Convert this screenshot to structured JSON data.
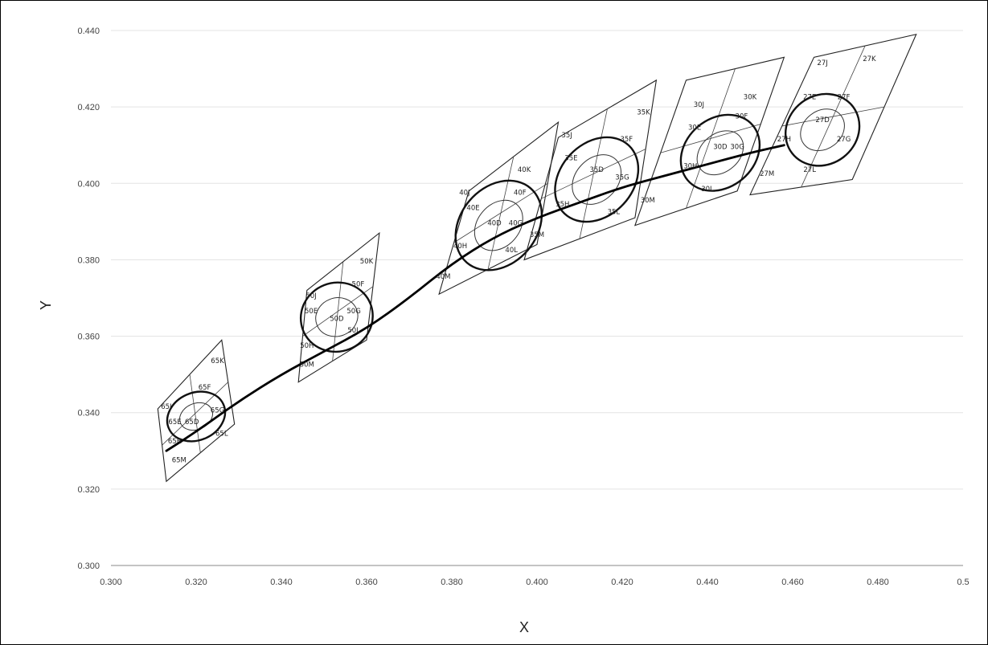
{
  "chart_data": {
    "type": "scatter",
    "title": "",
    "xlabel": "X",
    "ylabel": "Y",
    "xlim": [
      0.3,
      0.5
    ],
    "ylim": [
      0.3,
      0.44
    ],
    "x_ticks": [
      "0.300",
      "0.320",
      "0.340",
      "0.360",
      "0.380",
      "0.400",
      "0.420",
      "0.440",
      "0.460",
      "0.480",
      "0.5"
    ],
    "y_ticks": [
      "0.300",
      "0.320",
      "0.340",
      "0.360",
      "0.380",
      "0.400",
      "0.420",
      "0.440"
    ],
    "grid": "horizontal",
    "curve": {
      "x": [
        0.313,
        0.32,
        0.33,
        0.34,
        0.35,
        0.36,
        0.37,
        0.38,
        0.39,
        0.4,
        0.41,
        0.42,
        0.43,
        0.44,
        0.45,
        0.458
      ],
      "y": [
        0.33,
        0.335,
        0.343,
        0.35,
        0.356,
        0.362,
        0.37,
        0.379,
        0.386,
        0.391,
        0.395,
        0.399,
        0.402,
        0.405,
        0.408,
        0.41
      ]
    },
    "quadrangles": [
      {
        "name": "65",
        "center": [
          0.32,
          0.339
        ],
        "outer_ellipse": [
          0.007,
          0.0062
        ],
        "inner_ellipse": [
          0.004,
          0.0034
        ],
        "corners": [
          [
            0.311,
            0.341
          ],
          [
            0.326,
            0.359
          ],
          [
            0.329,
            0.337
          ],
          [
            0.313,
            0.322
          ]
        ],
        "labels": [
          {
            "text": "65K",
            "x": 0.325,
            "y": 0.353
          },
          {
            "text": "65F",
            "x": 0.322,
            "y": 0.346
          },
          {
            "text": "65J",
            "x": 0.313,
            "y": 0.341
          },
          {
            "text": "65E",
            "x": 0.315,
            "y": 0.337
          },
          {
            "text": "65D",
            "x": 0.319,
            "y": 0.337
          },
          {
            "text": "65G",
            "x": 0.325,
            "y": 0.34
          },
          {
            "text": "65L",
            "x": 0.326,
            "y": 0.334
          },
          {
            "text": "65H",
            "x": 0.315,
            "y": 0.332
          },
          {
            "text": "65M",
            "x": 0.316,
            "y": 0.327
          }
        ]
      },
      {
        "name": "50",
        "center": [
          0.353,
          0.365
        ],
        "outer_ellipse": [
          0.0085,
          0.009
        ],
        "inner_ellipse": [
          0.005,
          0.005
        ],
        "corners": [
          [
            0.346,
            0.372
          ],
          [
            0.363,
            0.387
          ],
          [
            0.36,
            0.359
          ],
          [
            0.344,
            0.348
          ]
        ],
        "labels": [
          {
            "text": "50K",
            "x": 0.36,
            "y": 0.379
          },
          {
            "text": "50F",
            "x": 0.358,
            "y": 0.373
          },
          {
            "text": "50J",
            "x": 0.347,
            "y": 0.37
          },
          {
            "text": "50E",
            "x": 0.347,
            "y": 0.366
          },
          {
            "text": "50D",
            "x": 0.353,
            "y": 0.364
          },
          {
            "text": "50G",
            "x": 0.357,
            "y": 0.366
          },
          {
            "text": "50L",
            "x": 0.357,
            "y": 0.361
          },
          {
            "text": "50H",
            "x": 0.346,
            "y": 0.357
          },
          {
            "text": "50M",
            "x": 0.346,
            "y": 0.352
          }
        ]
      },
      {
        "name": "40",
        "center": [
          0.391,
          0.389
        ],
        "outer_ellipse": [
          0.0115,
          0.01
        ],
        "inner_ellipse": [
          0.0065,
          0.0055
        ],
        "corners": [
          [
            0.377,
            0.371
          ],
          [
            0.384,
            0.398
          ],
          [
            0.405,
            0.416
          ],
          [
            0.4,
            0.384
          ]
        ],
        "labels": [
          {
            "text": "40K",
            "x": 0.397,
            "y": 0.403
          },
          {
            "text": "40F",
            "x": 0.396,
            "y": 0.397
          },
          {
            "text": "40J",
            "x": 0.383,
            "y": 0.397
          },
          {
            "text": "40E",
            "x": 0.385,
            "y": 0.393
          },
          {
            "text": "40D",
            "x": 0.39,
            "y": 0.389
          },
          {
            "text": "40G",
            "x": 0.395,
            "y": 0.389
          },
          {
            "text": "40H",
            "x": 0.382,
            "y": 0.383
          },
          {
            "text": "40L",
            "x": 0.394,
            "y": 0.382
          },
          {
            "text": "40M",
            "x": 0.378,
            "y": 0.375
          }
        ]
      },
      {
        "name": "35",
        "center": [
          0.414,
          0.401
        ],
        "outer_ellipse": [
          0.011,
          0.0095
        ],
        "inner_ellipse": [
          0.0065,
          0.0055
        ],
        "corners": [
          [
            0.397,
            0.38
          ],
          [
            0.405,
            0.412
          ],
          [
            0.428,
            0.427
          ],
          [
            0.423,
            0.391
          ]
        ],
        "labels": [
          {
            "text": "35K",
            "x": 0.425,
            "y": 0.418
          },
          {
            "text": "35F",
            "x": 0.421,
            "y": 0.411
          },
          {
            "text": "35J",
            "x": 0.407,
            "y": 0.412
          },
          {
            "text": "35E",
            "x": 0.408,
            "y": 0.406
          },
          {
            "text": "35D",
            "x": 0.414,
            "y": 0.403
          },
          {
            "text": "35G",
            "x": 0.42,
            "y": 0.401
          },
          {
            "text": "35H",
            "x": 0.406,
            "y": 0.394
          },
          {
            "text": "35L",
            "x": 0.418,
            "y": 0.392
          },
          {
            "text": "35M",
            "x": 0.4,
            "y": 0.386
          }
        ]
      },
      {
        "name": "30",
        "center": [
          0.443,
          0.408
        ],
        "outer_ellipse": [
          0.01,
          0.009
        ],
        "inner_ellipse": [
          0.006,
          0.005
        ],
        "corners": [
          [
            0.423,
            0.389
          ],
          [
            0.435,
            0.427
          ],
          [
            0.458,
            0.433
          ],
          [
            0.447,
            0.398
          ]
        ],
        "labels": [
          {
            "text": "30K",
            "x": 0.45,
            "y": 0.422
          },
          {
            "text": "30F",
            "x": 0.448,
            "y": 0.417
          },
          {
            "text": "30J",
            "x": 0.438,
            "y": 0.42
          },
          {
            "text": "30E",
            "x": 0.437,
            "y": 0.414
          },
          {
            "text": "30D",
            "x": 0.443,
            "y": 0.409
          },
          {
            "text": "30G",
            "x": 0.447,
            "y": 0.409
          },
          {
            "text": "30H",
            "x": 0.436,
            "y": 0.404
          },
          {
            "text": "30L",
            "x": 0.44,
            "y": 0.398
          },
          {
            "text": "30M",
            "x": 0.426,
            "y": 0.395
          }
        ]
      },
      {
        "name": "27",
        "center": [
          0.467,
          0.414
        ],
        "outer_ellipse": [
          0.009,
          0.009
        ],
        "inner_ellipse": [
          0.0055,
          0.005
        ],
        "corners": [
          [
            0.45,
            0.397
          ],
          [
            0.465,
            0.433
          ],
          [
            0.489,
            0.439
          ],
          [
            0.474,
            0.401
          ]
        ],
        "labels": [
          {
            "text": "27K",
            "x": 0.478,
            "y": 0.432
          },
          {
            "text": "27J",
            "x": 0.467,
            "y": 0.431
          },
          {
            "text": "27E",
            "x": 0.464,
            "y": 0.422
          },
          {
            "text": "27F",
            "x": 0.472,
            "y": 0.422
          },
          {
            "text": "27D",
            "x": 0.467,
            "y": 0.416
          },
          {
            "text": "27G",
            "x": 0.472,
            "y": 0.411
          },
          {
            "text": "27H",
            "x": 0.458,
            "y": 0.411
          },
          {
            "text": "27M",
            "x": 0.454,
            "y": 0.402
          },
          {
            "text": "27L",
            "x": 0.464,
            "y": 0.403
          }
        ]
      }
    ]
  }
}
